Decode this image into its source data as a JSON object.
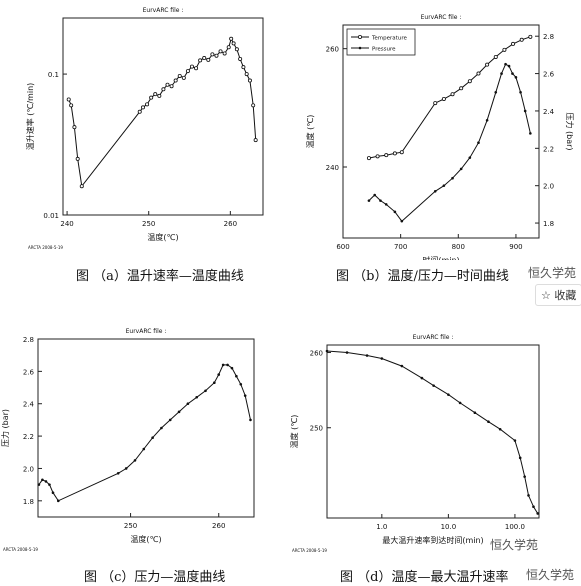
{
  "chart_data": [
    {
      "type": "line",
      "title": "EurvARC file :",
      "xlabel": "温度(℃)",
      "ylabel": "温升速率 (℃/min)",
      "footnote": "ARCTA 2008-5-19",
      "caption": "图 （a）温升速率—温度曲线",
      "x_scale": "linear",
      "y_scale": "log",
      "xlim": [
        239.5,
        264
      ],
      "ylim": [
        0.01,
        0.25
      ],
      "xticks": [
        240,
        250,
        260
      ],
      "xtick_labels": [
        "240",
        "250",
        "260"
      ],
      "yticks": [
        0.01,
        0.1
      ],
      "ytick_labels": [
        "0.01",
        "0.1"
      ],
      "series": [
        {
          "x": [
            240.2,
            240.5,
            240.9,
            241.3,
            241.8,
            248.9,
            249.3,
            249.8,
            250.3,
            250.8,
            251.3,
            251.8,
            252.3,
            252.8,
            253.3,
            253.8,
            254.3,
            254.8,
            255.3,
            255.8,
            256.3,
            256.8,
            257.3,
            257.8,
            258.3,
            258.8,
            259.3,
            259.8,
            260.1,
            260.4,
            260.8,
            261.2,
            261.6,
            262.0,
            262.4,
            262.8,
            263.1
          ],
          "y": [
            0.066,
            0.06,
            0.042,
            0.025,
            0.016,
            0.054,
            0.058,
            0.061,
            0.068,
            0.072,
            0.07,
            0.078,
            0.084,
            0.082,
            0.09,
            0.097,
            0.094,
            0.105,
            0.113,
            0.11,
            0.125,
            0.13,
            0.126,
            0.138,
            0.135,
            0.145,
            0.14,
            0.155,
            0.178,
            0.165,
            0.15,
            0.128,
            0.112,
            0.1,
            0.09,
            0.06,
            0.034
          ]
        }
      ]
    },
    {
      "type": "line",
      "title": "EurvARC file :",
      "xlabel": "时间(min)",
      "ylabel": "温度 (℃)",
      "ylabel2": "压力 (bar)",
      "footnote": "ARCTA 2008-5-19",
      "caption": "图 （b）温度/压力—时间曲线",
      "xlim": [
        600,
        940
      ],
      "ylim": [
        228,
        264
      ],
      "y2lim": [
        1.72,
        2.86
      ],
      "xticks": [
        600,
        700,
        800,
        900
      ],
      "xtick_labels": [
        "600",
        "700",
        "800",
        "900"
      ],
      "yticks": [
        240,
        260
      ],
      "ytick_labels": [
        "240",
        "260"
      ],
      "y2ticks": [
        1.8,
        2.0,
        2.2,
        2.4,
        2.6,
        2.8
      ],
      "y2tick_labels": [
        "1.8",
        "2.0",
        "2.2",
        "2.4",
        "2.6",
        "2.8"
      ],
      "legend": "top-left",
      "series": [
        {
          "name": "Temperature",
          "axis": "left",
          "x": [
            645,
            660,
            675,
            690,
            702,
            760,
            775,
            790,
            805,
            820,
            835,
            850,
            865,
            880,
            895,
            910,
            925
          ],
          "y": [
            241.5,
            241.8,
            242.0,
            242.3,
            242.5,
            250.8,
            251.5,
            252.3,
            253.3,
            254.5,
            255.8,
            257.3,
            258.6,
            259.8,
            260.8,
            261.5,
            262.0
          ]
        },
        {
          "name": "Pressure",
          "axis": "right",
          "x": [
            645,
            655,
            665,
            675,
            690,
            702,
            760,
            775,
            790,
            805,
            820,
            835,
            850,
            865,
            875,
            882,
            888,
            894,
            900,
            908,
            916,
            925
          ],
          "y": [
            1.92,
            1.95,
            1.92,
            1.9,
            1.86,
            1.81,
            1.97,
            2.0,
            2.04,
            2.09,
            2.15,
            2.23,
            2.35,
            2.5,
            2.6,
            2.65,
            2.64,
            2.6,
            2.58,
            2.5,
            2.4,
            2.28
          ]
        }
      ]
    },
    {
      "type": "line",
      "title": "EurvARC file :",
      "xlabel": "温度(℃)",
      "ylabel": "压力 (bar)",
      "footnote": "ARCTA 2008-5-19",
      "caption": "图 （c）压力—温度曲线",
      "xlim": [
        239.5,
        264
      ],
      "ylim": [
        1.7,
        2.8
      ],
      "xticks": [
        250,
        260
      ],
      "xtick_labels": [
        "250",
        "260"
      ],
      "yticks": [
        1.8,
        2.0,
        2.2,
        2.4,
        2.6,
        2.8
      ],
      "ytick_labels": [
        "1.8",
        "2.0",
        "2.2",
        "2.4",
        "2.6",
        "2.8"
      ],
      "series": [
        {
          "x": [
            239.6,
            240.0,
            240.4,
            240.8,
            241.2,
            241.8,
            248.6,
            249.5,
            250.5,
            251.5,
            252.5,
            253.5,
            254.5,
            255.5,
            256.5,
            257.5,
            258.5,
            259.5,
            260.0,
            260.5,
            261.0,
            261.5,
            262.0,
            262.5,
            263.0,
            263.6
          ],
          "y": [
            1.9,
            1.93,
            1.92,
            1.9,
            1.85,
            1.8,
            1.97,
            2.0,
            2.05,
            2.12,
            2.19,
            2.25,
            2.3,
            2.35,
            2.4,
            2.44,
            2.48,
            2.53,
            2.58,
            2.64,
            2.64,
            2.62,
            2.57,
            2.52,
            2.45,
            2.3
          ]
        }
      ]
    },
    {
      "type": "line",
      "title": "EurvARC file :",
      "xlabel": "最大温升速率到达时间(min)",
      "ylabel": "温度 (℃)",
      "footnote": "ARCTA 2008-5-19",
      "caption": "图 （d）温度—最大温升速率",
      "x_scale": "log",
      "xlim": [
        0.15,
        230
      ],
      "ylim": [
        238,
        261
      ],
      "xticks": [
        1,
        10,
        100
      ],
      "xtick_labels": [
        "1.0",
        "10.0",
        "100.0"
      ],
      "yticks": [
        250,
        260
      ],
      "ytick_labels": [
        "250",
        "260"
      ],
      "series": [
        {
          "x": [
            0.15,
            0.3,
            0.6,
            1.0,
            2.0,
            4.0,
            6.0,
            10.0,
            15.0,
            25.0,
            40.0,
            60.0,
            100.0,
            120.0,
            140.0,
            160.0,
            190.0,
            220.0
          ],
          "y": [
            260.2,
            260.0,
            259.6,
            259.2,
            258.2,
            256.6,
            255.6,
            254.4,
            253.3,
            252.0,
            250.8,
            249.8,
            248.3,
            246.0,
            243.5,
            241.0,
            239.5,
            238.6
          ]
        }
      ]
    }
  ],
  "watermark": {
    "text1": "恒久学苑",
    "text2": "收藏",
    "text3": "恒久学苑",
    "text4": "恒久学苑"
  }
}
